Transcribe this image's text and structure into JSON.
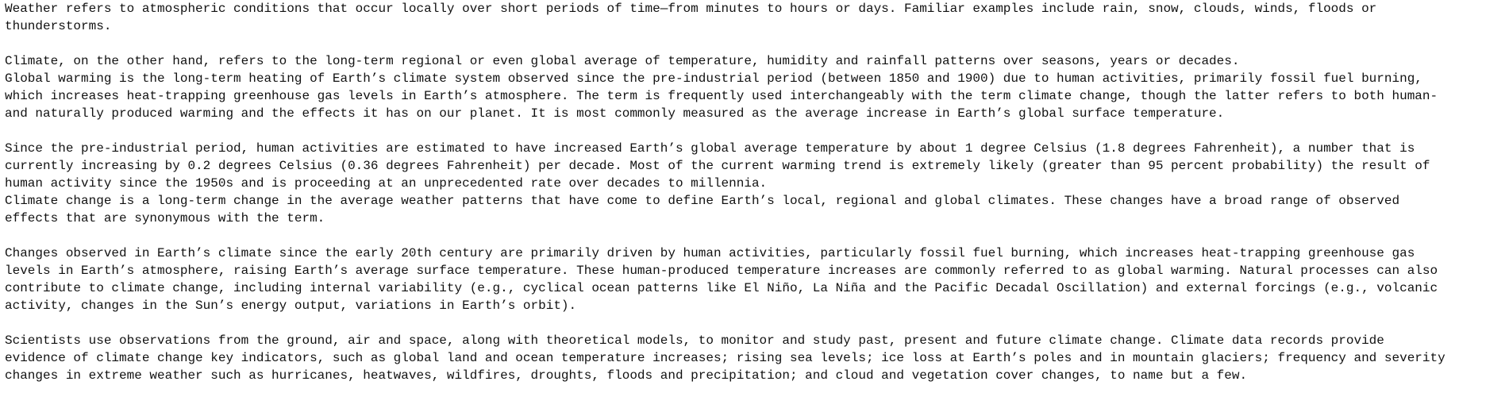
{
  "paragraphs": [
    {
      "lines": [
        "Weather refers to atmospheric conditions that occur locally over short periods of time—from minutes to hours or days. Familiar examples include rain, snow, clouds, winds, floods or",
        "thunderstorms."
      ]
    },
    {
      "lines": [
        "Climate, on the other hand, refers to the long-term regional or even global average of temperature, humidity and rainfall patterns over seasons, years or decades."
      ]
    },
    {
      "lines": [
        "Global warming is the long-term heating of Earth’s climate system observed since the pre-industrial period (between 1850 and 1900) due to human activities, primarily fossil fuel burning,",
        "which increases heat-trapping greenhouse gas levels in Earth’s atmosphere. The term is frequently used interchangeably with the term climate change, though the latter refers to both human-",
        "and naturally produced warming and the effects it has on our planet. It is most commonly measured as the average increase in Earth’s global surface temperature."
      ]
    },
    {
      "lines": [
        "Since the pre-industrial period, human activities are estimated to have increased Earth’s global average temperature by about 1 degree Celsius (1.8 degrees Fahrenheit), a number that is",
        "currently increasing by 0.2 degrees Celsius (0.36 degrees Fahrenheit) per decade. Most of the current warming trend is extremely likely (greater than 95 percent probability) the result of",
        "human activity since the 1950s and is proceeding at an unprecedented rate over decades to millennia."
      ]
    },
    {
      "lines": [
        "Climate change is a long-term change in the average weather patterns that have come to define Earth’s local, regional and global climates. These changes have a broad range of observed",
        "effects that are synonymous with the term."
      ]
    },
    {
      "lines": [
        "Changes observed in Earth’s climate since the early 20th century are primarily driven by human activities, particularly fossil fuel burning, which increases heat-trapping greenhouse gas",
        "levels in Earth’s atmosphere, raising Earth’s average surface temperature. These human-produced temperature increases are commonly referred to as global warming. Natural processes can also",
        "contribute to climate change, including internal variability (e.g., cyclical ocean patterns like El Niño, La Niña and the Pacific Decadal Oscillation) and external forcings (e.g., volcanic",
        "activity, changes in the Sun’s energy output, variations in Earth’s orbit)."
      ]
    },
    {
      "lines": [
        "Scientists use observations from the ground, air and space, along with theoretical models, to monitor and study past, present and future climate change. Climate data records provide",
        "evidence of climate change key indicators, such as global land and ocean temperature increases; rising sea levels; ice loss at Earth’s poles and in mountain glaciers; frequency and severity",
        "changes in extreme weather such as hurricanes, heatwaves, wildfires, droughts, floods and precipitation; and cloud and vegetation cover changes, to name but a few."
      ]
    }
  ]
}
